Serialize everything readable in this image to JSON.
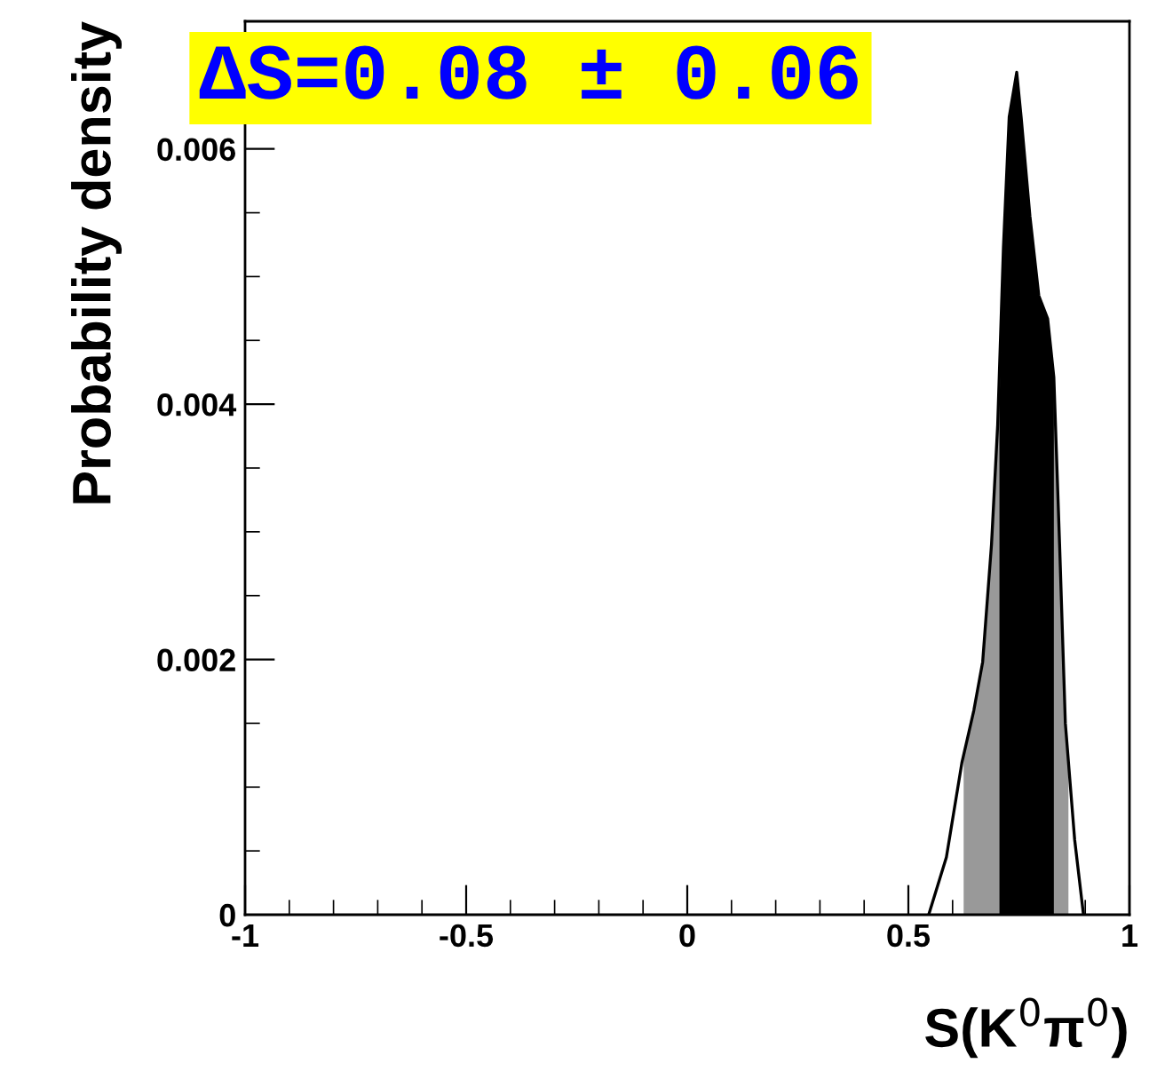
{
  "chart_data": {
    "type": "line",
    "xlabel": "S(K$^{0}$π$^{0}$)",
    "ylabel": "Probability density",
    "annotations": [
      "ΔS=0.08 ± 0.06"
    ],
    "xlim": [
      -1,
      1
    ],
    "ylim": [
      0,
      0.007
    ],
    "xticks": [
      -1,
      -0.5,
      0,
      0.5,
      1
    ],
    "yticks": [
      0,
      0.002,
      0.004,
      0.006
    ],
    "grid": false,
    "legend": false,
    "series": [
      {
        "type": "area",
        "color": "#999999",
        "x": [
          0.625,
          0.648,
          0.668,
          0.688,
          0.702,
          0.715,
          0.728,
          0.745,
          0.755,
          0.775,
          0.795,
          0.815,
          0.829,
          0.842,
          0.855,
          0.862
        ],
        "values": [
          0.00125,
          0.0016,
          0.00198,
          0.0029,
          0.00384,
          0.00523,
          0.00625,
          0.0066,
          0.00625,
          0.00547,
          0.00485,
          0.00467,
          0.00421,
          0.0029,
          0.0015,
          0.0012
        ]
      },
      {
        "type": "area",
        "color": "#000000",
        "x": [
          0.706,
          0.715,
          0.728,
          0.745,
          0.755,
          0.775,
          0.795,
          0.815,
          0.829
        ],
        "values": [
          0.004,
          0.00523,
          0.00625,
          0.0066,
          0.00625,
          0.00547,
          0.00485,
          0.00467,
          0.00421
        ]
      },
      {
        "color": "#000000",
        "x": [
          0.546,
          0.586,
          0.621,
          0.648,
          0.668,
          0.688,
          0.702,
          0.715,
          0.728,
          0.745,
          0.755,
          0.775,
          0.795,
          0.815,
          0.829,
          0.842,
          0.855,
          0.876,
          0.896
        ],
        "values": [
          0,
          0.00045,
          0.00119,
          0.0016,
          0.00198,
          0.0029,
          0.00384,
          0.00523,
          0.00625,
          0.0066,
          0.00625,
          0.00547,
          0.00485,
          0.00467,
          0.00421,
          0.0029,
          0.0015,
          0.00059,
          0
        ]
      }
    ]
  }
}
